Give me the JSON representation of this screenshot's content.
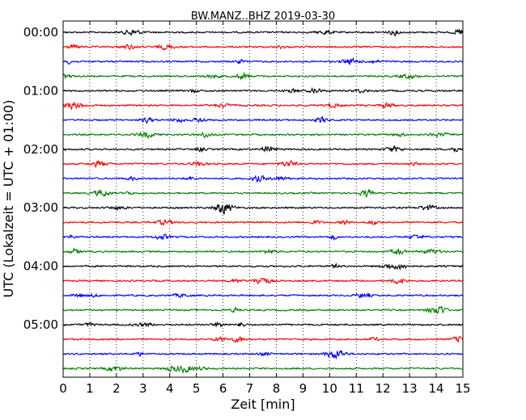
{
  "chart_data": {
    "type": "line",
    "title": "BW.MANZ..BHZ 2019-03-30",
    "xlabel": "Zeit  [min]",
    "ylabel": "UTC (Lokalzeit = UTC + 01:00)",
    "xlim": [
      0,
      15
    ],
    "x_ticks": [
      "0",
      "1",
      "2",
      "3",
      "4",
      "5",
      "6",
      "7",
      "8",
      "9",
      "10",
      "11",
      "12",
      "13",
      "14",
      "15"
    ],
    "y_ticks": [
      "00:00",
      "01:00",
      "02:00",
      "03:00",
      "04:00",
      "05:00"
    ],
    "grid": "vertical dotted lines at each minute",
    "trace_colors": [
      "#000000",
      "#ff0000",
      "#0000ff",
      "#007f00"
    ],
    "trace_interval_minutes": 15,
    "traces": [
      {
        "start": "00:00"
      },
      {
        "start": "00:15"
      },
      {
        "start": "00:30"
      },
      {
        "start": "00:45"
      },
      {
        "start": "01:00"
      },
      {
        "start": "01:15"
      },
      {
        "start": "01:30"
      },
      {
        "start": "01:45"
      },
      {
        "start": "02:00"
      },
      {
        "start": "02:15"
      },
      {
        "start": "02:30"
      },
      {
        "start": "02:45"
      },
      {
        "start": "03:00"
      },
      {
        "start": "03:15"
      },
      {
        "start": "03:30"
      },
      {
        "start": "03:45"
      },
      {
        "start": "04:00"
      },
      {
        "start": "04:15"
      },
      {
        "start": "04:30"
      },
      {
        "start": "04:45"
      },
      {
        "start": "05:00"
      },
      {
        "start": "05:15"
      },
      {
        "start": "05:30"
      },
      {
        "start": "05:45"
      }
    ]
  }
}
